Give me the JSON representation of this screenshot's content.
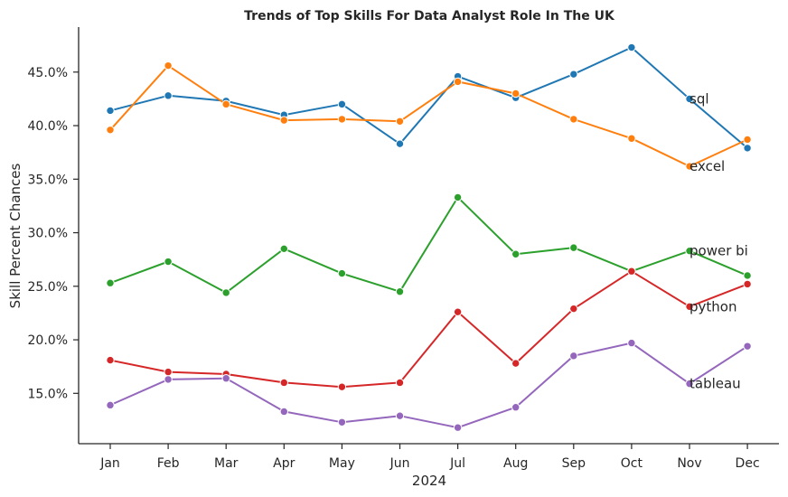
{
  "chart_data": {
    "type": "line",
    "title": "Trends of Top Skills For Data Analyst Role In The UK",
    "xlabel": "2024",
    "ylabel": "Skill Percent Chances",
    "categories": [
      "Jan",
      "Feb",
      "Mar",
      "Apr",
      "May",
      "Jun",
      "Jul",
      "Aug",
      "Sep",
      "Oct",
      "Nov",
      "Dec"
    ],
    "y_ticks": [
      "15.0%",
      "20.0%",
      "25.0%",
      "30.0%",
      "35.0%",
      "40.0%",
      "45.0%"
    ],
    "y_tick_values": [
      15,
      20,
      25,
      30,
      35,
      40,
      45
    ],
    "ylim": [
      10.3,
      49.2
    ],
    "grid": false,
    "markers": true,
    "series_labels_at": "Nov",
    "series": [
      {
        "name": "sql",
        "color": "#1f77b4",
        "values": [
          41.4,
          42.8,
          42.3,
          41.0,
          42.0,
          38.3,
          44.6,
          42.6,
          44.8,
          47.3,
          42.5,
          37.9
        ]
      },
      {
        "name": "excel",
        "color": "#ff7f0e",
        "values": [
          39.6,
          45.6,
          42.0,
          40.5,
          40.6,
          40.4,
          44.1,
          43.0,
          40.6,
          38.8,
          36.2,
          38.7
        ]
      },
      {
        "name": "power bi",
        "color": "#2ca02c",
        "values": [
          25.3,
          27.3,
          24.4,
          28.5,
          26.2,
          24.5,
          33.3,
          28.0,
          28.6,
          26.4,
          28.3,
          26.0
        ]
      },
      {
        "name": "python",
        "color": "#d62728",
        "values": [
          18.1,
          17.0,
          16.8,
          16.0,
          15.6,
          16.0,
          22.6,
          17.8,
          22.9,
          26.4,
          23.1,
          25.2
        ]
      },
      {
        "name": "tableau",
        "color": "#9467bd",
        "values": [
          13.9,
          16.3,
          16.4,
          13.3,
          12.3,
          12.9,
          11.8,
          13.7,
          18.5,
          19.7,
          15.9,
          19.4
        ]
      }
    ]
  }
}
